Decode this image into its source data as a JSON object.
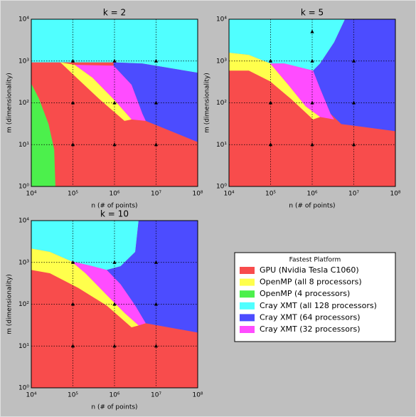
{
  "chart_data": [
    {
      "type": "region",
      "title": "k = 2",
      "xlabel": "n (# of points)",
      "ylabel": "m (dimensionality)",
      "xlim": [
        10000,
        100000000
      ],
      "ylim": [
        1,
        10000
      ],
      "log_x": true,
      "log_y": true,
      "grid": true,
      "xticks": [
        {
          "value": 10000,
          "label": "10⁴"
        },
        {
          "value": 100000,
          "label": "10⁵"
        },
        {
          "value": 1000000,
          "label": "10⁶"
        },
        {
          "value": 10000000,
          "label": "10⁷"
        },
        {
          "value": 100000000,
          "label": "10⁸"
        }
      ],
      "yticks": [
        {
          "value": 1,
          "label": "10⁰"
        },
        {
          "value": 10,
          "label": "10¹"
        },
        {
          "value": 100,
          "label": "10²"
        },
        {
          "value": 1000,
          "label": "10³"
        },
        {
          "value": 10000,
          "label": "10⁴"
        }
      ],
      "regions": [
        {
          "color": "#f84c4c",
          "x": [
            10000,
            100000000,
            100000000,
            10000
          ],
          "y": [
            1,
            1,
            10000,
            10000
          ]
        },
        {
          "color": "#50ffff",
          "x": [
            10000,
            100000000,
            100000000,
            4680000,
            950000,
            10000
          ],
          "y": [
            10000,
            10000,
            525,
            870,
            930,
            930
          ]
        },
        {
          "color": "#4c4cff",
          "x": [
            950000,
            4680000,
            100000000,
            100000000,
            5630000,
            4680000,
            2570000,
            950000
          ],
          "y": [
            930,
            870,
            525,
            11.5,
            37,
            55,
            270,
            775
          ]
        },
        {
          "color": "#ff4cff",
          "x": [
            110000,
            950000,
            2570000,
            4680000,
            5630000,
            2570000,
            950000,
            295000
          ],
          "y": [
            810,
            775,
            270,
            55,
            37,
            40,
            122,
            400
          ]
        },
        {
          "color": "#ffff4c",
          "x": [
            50000,
            110000,
            295000,
            950000,
            2570000,
            1740000,
            435000,
            135000
          ],
          "y": [
            930,
            810,
            400,
            122,
            40,
            37,
            122,
            365
          ]
        },
        {
          "color": "#4cf04c",
          "x": [
            10000,
            15500,
            26000,
            35500,
            38000,
            10000
          ],
          "y": [
            290,
            122,
            31,
            7.7,
            1,
            1
          ]
        }
      ],
      "points": {
        "color": "#000000",
        "x": [
          100000,
          100000,
          100000,
          1000000,
          1000000,
          1000000,
          10000000,
          10000000,
          10000000
        ],
        "y": [
          10,
          100,
          1000,
          10,
          100,
          1000,
          10,
          100,
          1000
        ]
      }
    },
    {
      "type": "region",
      "title": "k = 5",
      "xlabel": "n (# of points)",
      "ylabel": "m (dimensionality)",
      "xlim": [
        10000,
        100000000
      ],
      "ylim": [
        1,
        10000
      ],
      "log_x": true,
      "log_y": true,
      "grid": true,
      "xticks": [
        {
          "value": 10000,
          "label": "10⁴"
        },
        {
          "value": 100000,
          "label": "10⁵"
        },
        {
          "value": 1000000,
          "label": "10⁶"
        },
        {
          "value": 10000000,
          "label": "10⁷"
        },
        {
          "value": 100000000,
          "label": "10⁸"
        }
      ],
      "yticks": [
        {
          "value": 1,
          "label": "10⁰"
        },
        {
          "value": 10,
          "label": "10¹"
        },
        {
          "value": 100,
          "label": "10²"
        },
        {
          "value": 1000,
          "label": "10³"
        },
        {
          "value": 10000,
          "label": "10⁴"
        }
      ],
      "regions": [
        {
          "color": "#f84c4c",
          "x": [
            10000,
            100000000,
            100000000,
            10000
          ],
          "y": [
            1,
            1,
            10000,
            10000
          ]
        },
        {
          "color": "#50ffff",
          "x": [
            10000,
            6150000,
            3370000,
            1550000,
            1050000,
            475000,
            215000,
            98000,
            30000,
            10000
          ],
          "y": [
            10000,
            10000,
            2800,
            870,
            590,
            715,
            870,
            870,
            1400,
            1580
          ]
        },
        {
          "color": "#4c4cff",
          "x": [
            6150000,
            100000000,
            100000000,
            5000000,
            2760000,
            1550000,
            1050000,
            1550000,
            3370000
          ],
          "y": [
            10000,
            10000,
            21,
            31,
            55,
            220,
            590,
            870,
            2800
          ]
        },
        {
          "color": "#ff4cff",
          "x": [
            98000,
            215000,
            475000,
            1050000,
            1550000,
            2760000,
            3370000,
            1550000,
            700000,
            265000
          ],
          "y": [
            870,
            870,
            715,
            590,
            220,
            55,
            40,
            46,
            82,
            270
          ]
        },
        {
          "color": "#ffff4c",
          "x": [
            10000,
            30000,
            98000,
            265000,
            700000,
            1550000,
            1050000,
            315000,
            98000,
            30000,
            10000
          ],
          "y": [
            1580,
            1400,
            870,
            270,
            82,
            46,
            40,
            122,
            325,
            590,
            590
          ]
        }
      ],
      "points": {
        "color": "#000000",
        "x": [
          100000,
          100000,
          100000,
          1000000,
          1000000,
          1000000,
          1000000,
          10000000,
          10000000,
          10000000
        ],
        "y": [
          10,
          100,
          1000,
          10,
          100,
          1000,
          5000,
          10,
          100,
          1000
        ]
      }
    },
    {
      "type": "region",
      "title": "k = 10",
      "xlabel": "n (# of points)",
      "ylabel": "m (dimensionality)",
      "xlim": [
        10000,
        100000000
      ],
      "ylim": [
        1,
        10000
      ],
      "log_x": true,
      "log_y": true,
      "grid": true,
      "xticks": [
        {
          "value": 10000,
          "label": "10⁴"
        },
        {
          "value": 100000,
          "label": "10⁵"
        },
        {
          "value": 1000000,
          "label": "10⁶"
        },
        {
          "value": 10000000,
          "label": "10⁷"
        },
        {
          "value": 100000000,
          "label": "10⁸"
        }
      ],
      "yticks": [
        {
          "value": 1,
          "label": "10⁰"
        },
        {
          "value": 10,
          "label": "10¹"
        },
        {
          "value": 100,
          "label": "10²"
        },
        {
          "value": 1000,
          "label": "10³"
        },
        {
          "value": 10000,
          "label": "10⁴"
        }
      ],
      "regions": [
        {
          "color": "#f84c4c",
          "x": [
            10000,
            100000000,
            100000000,
            10000
          ],
          "y": [
            1,
            1,
            10000,
            10000
          ]
        },
        {
          "color": "#50ffff",
          "x": [
            10000,
            3800000,
            3150000,
            1400000,
            650000,
            295000,
            90000,
            28000,
            10000
          ],
          "y": [
            10000,
            10000,
            1780,
            810,
            660,
            810,
            1070,
            1780,
            2150
          ]
        },
        {
          "color": "#4c4cff",
          "x": [
            3800000,
            100000000,
            100000000,
            5630000,
            3150000,
            1400000,
            650000,
            1400000,
            3150000
          ],
          "y": [
            10000,
            10000,
            21,
            35,
            93,
            300,
            660,
            810,
            1780
          ]
        },
        {
          "color": "#ff4cff",
          "x": [
            90000,
            295000,
            650000,
            1400000,
            3150000,
            5630000,
            3800000,
            1740000,
            650000,
            200000
          ],
          "y": [
            1070,
            810,
            660,
            300,
            93,
            35,
            31,
            62,
            166,
            550
          ]
        },
        {
          "color": "#ffff4c",
          "x": [
            10000,
            28000,
            90000,
            200000,
            650000,
            1740000,
            3800000,
            2570000,
            650000,
            135000,
            28000,
            10000
          ],
          "y": [
            2150,
            1780,
            1070,
            550,
            166,
            62,
            31,
            28,
            93,
            245,
            550,
            660
          ]
        }
      ],
      "points": {
        "color": "#000000",
        "x": [
          100000,
          100000,
          100000,
          1000000,
          1000000,
          1000000,
          10000000,
          10000000,
          10000000
        ],
        "y": [
          10,
          100,
          1000,
          10,
          100,
          1000,
          10,
          100,
          1000
        ]
      }
    }
  ],
  "legend": {
    "title": "Fastest Platform",
    "series": [
      {
        "name": "GPU (Nvidia Tesla C1060)",
        "color": "#f84c4c"
      },
      {
        "name": "OpenMP (all 8 processors)",
        "color": "#ffff4c"
      },
      {
        "name": "OpenMP (4 processors)",
        "color": "#4cf04c"
      },
      {
        "name": "Cray XMT (all 128 processors)",
        "color": "#50ffff"
      },
      {
        "name": "Cray XMT (64 processors)",
        "color": "#4c4cff"
      },
      {
        "name": "Cray XMT (32 processors)",
        "color": "#ff4cff"
      }
    ]
  }
}
